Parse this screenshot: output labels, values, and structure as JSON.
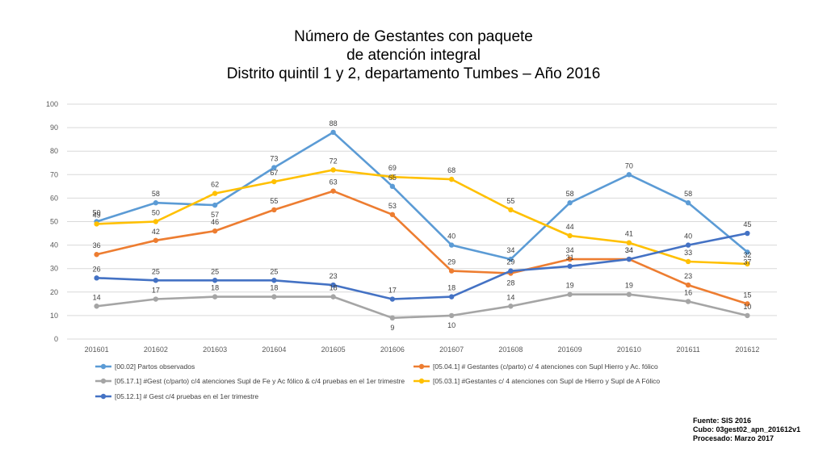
{
  "title": {
    "line1": "Número de Gestantes con paquete",
    "line2": "de atención integral",
    "line3": "Distrito quintil 1 y 2, departamento Tumbes – Año 2016"
  },
  "source": {
    "line1": "Fuente: SIS 2016",
    "line2": "Cubo: 03gest02_apn_201612v1",
    "line3": "Procesado: Marzo 2017"
  },
  "chart_data": {
    "type": "line",
    "title": "Número de Gestantes con paquete de atención integral Distrito quintil 1 y 2, departamento Tumbes – Año 2016",
    "categories": [
      "201601",
      "201602",
      "201603",
      "201604",
      "201605",
      "201606",
      "201607",
      "201608",
      "201609",
      "201610",
      "201611",
      "201612"
    ],
    "ylim": [
      0,
      100
    ],
    "yticks": [
      0,
      10,
      20,
      30,
      40,
      50,
      60,
      70,
      80,
      90,
      100
    ],
    "grid": true,
    "legend_position": "bottom",
    "data_labels": true,
    "series": [
      {
        "name": "[00.02] Partos observados",
        "color": "#5B9BD5",
        "values": [
          50,
          58,
          57,
          73,
          88,
          65,
          40,
          34,
          58,
          70,
          58,
          37
        ]
      },
      {
        "name": "[05.04.1] # Gestantes (c/parto) c/ 4 atenciones con Supl Hierro y Ac. fólico",
        "color": "#ED7D31",
        "values": [
          36,
          42,
          46,
          55,
          63,
          53,
          29,
          28,
          34,
          34,
          23,
          15
        ]
      },
      {
        "name": "[05.17.1] #Gest (c/parto) c/4 atenciones Supl de Fe y Ac fólico & c/4 pruebas en el 1er trimestre",
        "color": "#A5A5A5",
        "values": [
          14,
          17,
          18,
          18,
          18,
          9,
          10,
          14,
          19,
          19,
          16,
          10
        ]
      },
      {
        "name": "[05.03.1] #Gestantes c/ 4 atenciones con Supl de Hierro y Supl de A Fólico",
        "color": "#FFC000",
        "values": [
          49,
          50,
          62,
          67,
          72,
          69,
          68,
          55,
          44,
          41,
          33,
          32
        ]
      },
      {
        "name": "[05.12.1] # Gest c/4 pruebas en el 1er trimestre",
        "color": "#4472C4",
        "values": [
          26,
          25,
          25,
          25,
          23,
          17,
          18,
          29,
          31,
          34,
          40,
          45
        ]
      }
    ]
  }
}
